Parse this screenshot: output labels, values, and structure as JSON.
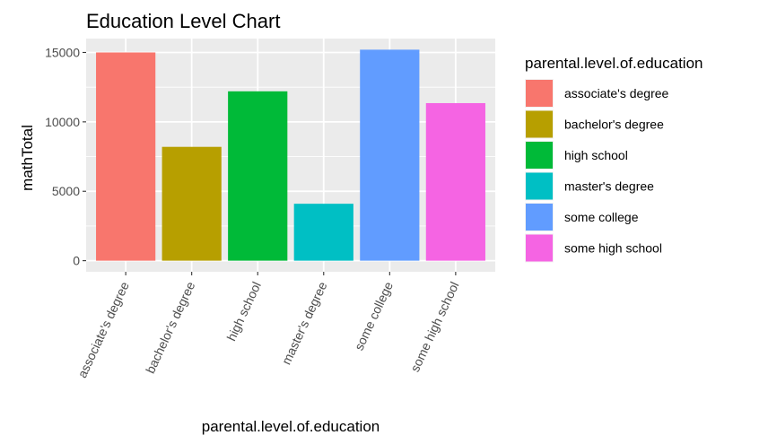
{
  "chart_data": {
    "type": "bar",
    "title": "Education Level Chart",
    "xlabel": "parental.level.of.education",
    "ylabel": "mathTotal",
    "categories": [
      "associate's degree",
      "bachelor's degree",
      "high school",
      "master's degree",
      "some college",
      "some high school"
    ],
    "values": [
      15000,
      8200,
      12200,
      4100,
      15200,
      11350
    ],
    "colors": [
      "#F8766D",
      "#B79F00",
      "#00BA38",
      "#00BFC4",
      "#619CFF",
      "#F564E3"
    ],
    "ylim": [
      -800,
      16000
    ],
    "yticks": [
      0,
      5000,
      10000,
      15000
    ],
    "ytick_labels": [
      "0",
      "5000",
      "10000",
      "15000"
    ],
    "grid": true,
    "panel_background": "#EBEBEB",
    "legend": {
      "title": "parental.level.of.education",
      "placement": "right",
      "entries": [
        "associate's degree",
        "bachelor's degree",
        "high school",
        "master's degree",
        "some college",
        "some high school"
      ]
    }
  }
}
